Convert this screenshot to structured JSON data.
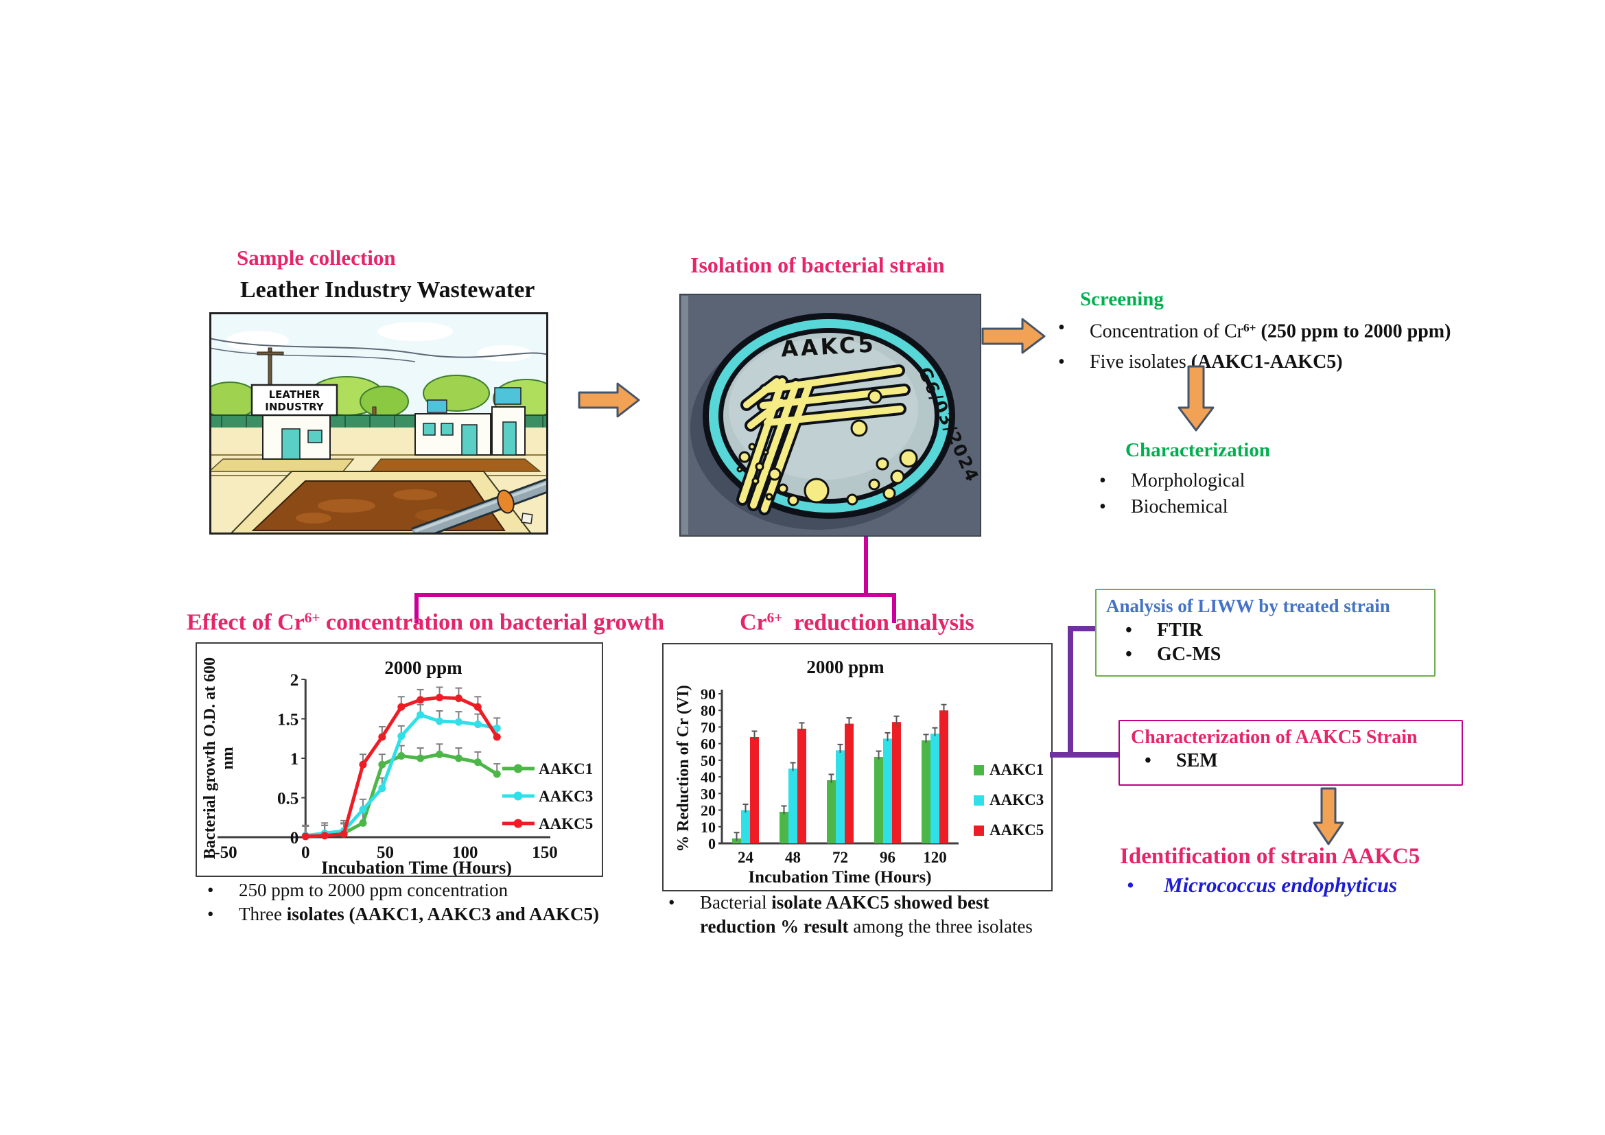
{
  "colors": {
    "heading_pink": "#e62469",
    "heading_green": "#00b050",
    "box_title_blue": "#4472c4",
    "species_blue": "#1b1bd8",
    "bracket_magenta": "#cc0099",
    "connector_purple": "#7030a0",
    "arrow_orange": "#f2a254",
    "series_green": "#4cb748",
    "series_cyan": "#2fe0e8",
    "series_red": "#ee1c25"
  },
  "sample_collection": {
    "heading": "Sample collection",
    "subheading": "Leather Industry Wastewater",
    "sign_line1": "LEATHER",
    "sign_line2": "INDUSTRY"
  },
  "isolation": {
    "heading": "Isolation of bacterial strain",
    "dish_label": "AAKC5",
    "dish_date": "G6/03/2024"
  },
  "screening": {
    "heading": "Screening",
    "bullet1_pre": "Concentration of Cr",
    "bullet1_sup": "6+",
    "bullet1_bold": " (250 ppm to 2000 ppm)",
    "bullet2_normal": "Five isolates ",
    "bullet2_bold": "(AAKC1-AAKC5)"
  },
  "characterization": {
    "heading": "Characterization",
    "bullet1": "Morphological",
    "bullet2": "Biochemical"
  },
  "growth_section": {
    "heading_pre": "Effect of Cr",
    "heading_sup": "6+",
    "heading_post": " concentration on bacterial growth",
    "bullet1": "250 ppm to 2000 ppm concentration",
    "bullet2_normal": "Three ",
    "bullet2_bold": "isolates (AAKC1, AAKC3 and AAKC5)"
  },
  "reduction_section": {
    "heading_pre": "Cr",
    "heading_sup": "6+",
    "heading_post": "  reduction analysis",
    "caption_normal1": "Bacterial ",
    "caption_bold": "isolate AAKC5 showed best reduction % result",
    "caption_normal2": " among the three isolates"
  },
  "liww_box": {
    "title": "Analysis of LIWW by treated strain",
    "bullet1": "FTIR",
    "bullet2": "GC-MS"
  },
  "aakc5_box": {
    "title": "Characterization of AAKC5 Strain",
    "bullet1": "SEM"
  },
  "identification": {
    "heading": "Identification of strain AAKC5",
    "species": "Micrococcus endophyticus"
  },
  "chart_data": [
    {
      "type": "line",
      "title": "2000 ppm",
      "xlabel": "Incubation Time (Hours)",
      "ylabel": "Bacterial growth O.D. at 600 nm",
      "ylabel_lines": [
        "Bacterial growth O.D. at 600",
        "nm"
      ],
      "xlim": [
        -50,
        150
      ],
      "ylim": [
        0,
        2
      ],
      "xticks": [
        -50,
        0,
        50,
        100,
        150
      ],
      "yticks": [
        0,
        0.5,
        1,
        1.5,
        2
      ],
      "grid": false,
      "legend_position": "right",
      "x": [
        0,
        12,
        24,
        36,
        48,
        60,
        72,
        84,
        96,
        108,
        120
      ],
      "error_bar": 0.13,
      "series": [
        {
          "name": "AAKC1",
          "color": "#4cb748",
          "values": [
            0.01,
            0.02,
            0.05,
            0.18,
            0.92,
            1.03,
            1.0,
            1.05,
            1.0,
            0.95,
            0.8
          ]
        },
        {
          "name": "AAKC3",
          "color": "#2fe0e8",
          "values": [
            0.02,
            0.05,
            0.08,
            0.35,
            0.62,
            1.28,
            1.55,
            1.47,
            1.46,
            1.43,
            1.38
          ]
        },
        {
          "name": "AAKC5",
          "color": "#ee1c25",
          "values": [
            0.01,
            0.02,
            0.04,
            0.92,
            1.27,
            1.65,
            1.74,
            1.77,
            1.76,
            1.65,
            1.27
          ]
        }
      ]
    },
    {
      "type": "bar",
      "title": "2000 ppm",
      "xlabel": "Incubation Time (Hours)",
      "ylabel": "% Reduction of Cr (VI)",
      "ylim": [
        0,
        90
      ],
      "yticks": [
        0,
        10,
        20,
        30,
        40,
        50,
        60,
        70,
        80,
        90
      ],
      "grid": false,
      "legend_position": "right",
      "categories": [
        "24",
        "48",
        "72",
        "96",
        "120"
      ],
      "error_bar": 3.5,
      "series": [
        {
          "name": "AAKC1",
          "color": "#4cb748",
          "values": [
            3,
            19,
            38,
            52,
            62
          ]
        },
        {
          "name": "AAKC3",
          "color": "#2fe0e8",
          "values": [
            20,
            45,
            56,
            63,
            66
          ]
        },
        {
          "name": "AAKC5",
          "color": "#ee1c25",
          "values": [
            64,
            69,
            72,
            73,
            80
          ]
        }
      ]
    }
  ]
}
